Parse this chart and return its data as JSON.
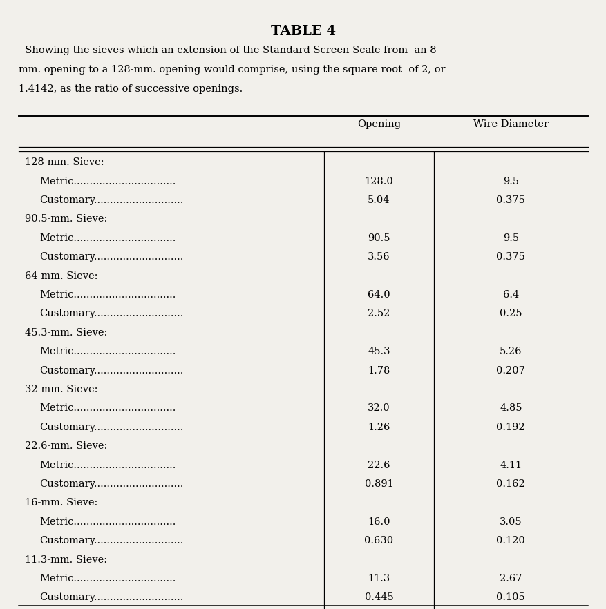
{
  "title": "TABLE 4",
  "subtitle_line1": "  Showing the sieves which an extension of the Standard Screen Scale from  an 8-",
  "subtitle_line2": "mm. opening to a 128-mm. opening would comprise, using the square root  of 2, or",
  "subtitle_line3": "1.4142, as the ratio of successive openings.",
  "col_header1": "Opening",
  "col_header2": "Wire Diameter",
  "rows": [
    {
      "label": "128-mm. Sieve:",
      "indent": false,
      "opening": "",
      "wire": ""
    },
    {
      "label": "Metric................................",
      "indent": true,
      "opening": "128.0",
      "wire": "9.5"
    },
    {
      "label": "Customary............................",
      "indent": true,
      "opening": "5.04",
      "wire": "0.375"
    },
    {
      "label": "90.5-mm. Sieve:",
      "indent": false,
      "opening": "",
      "wire": ""
    },
    {
      "label": "Metric................................",
      "indent": true,
      "opening": "90.5",
      "wire": "9.5"
    },
    {
      "label": "Customary............................",
      "indent": true,
      "opening": "3.56",
      "wire": "0.375"
    },
    {
      "label": "64-mm. Sieve:",
      "indent": false,
      "opening": "",
      "wire": ""
    },
    {
      "label": "Metric................................",
      "indent": true,
      "opening": "64.0",
      "wire": "6.4"
    },
    {
      "label": "Customary............................",
      "indent": true,
      "opening": "2.52",
      "wire": "0.25"
    },
    {
      "label": "45.3-mm. Sieve:",
      "indent": false,
      "opening": "",
      "wire": ""
    },
    {
      "label": "Metric................................",
      "indent": true,
      "opening": "45.3",
      "wire": "5.26"
    },
    {
      "label": "Customary............................",
      "indent": true,
      "opening": "1.78",
      "wire": "0.207"
    },
    {
      "label": "32-mm. Sieve:",
      "indent": false,
      "opening": "",
      "wire": ""
    },
    {
      "label": "Metric................................",
      "indent": true,
      "opening": "32.0",
      "wire": "4.85"
    },
    {
      "label": "Customary............................",
      "indent": true,
      "opening": "1.26",
      "wire": "0.192"
    },
    {
      "label": "22.6-mm. Sieve:",
      "indent": false,
      "opening": "",
      "wire": ""
    },
    {
      "label": "Metric................................",
      "indent": true,
      "opening": "22.6",
      "wire": "4.11"
    },
    {
      "label": "Customary............................",
      "indent": true,
      "opening": "0.891",
      "wire": "0.162"
    },
    {
      "label": "16-mm. Sieve:",
      "indent": false,
      "opening": "",
      "wire": ""
    },
    {
      "label": "Metric................................",
      "indent": true,
      "opening": "16.0",
      "wire": "3.05"
    },
    {
      "label": "Customary............................",
      "indent": true,
      "opening": "0.630",
      "wire": "0.120"
    },
    {
      "label": "11.3-mm. Sieve:",
      "indent": false,
      "opening": "",
      "wire": ""
    },
    {
      "label": "Metric................................",
      "indent": true,
      "opening": "11.3",
      "wire": "2.67"
    },
    {
      "label": "Customary............................",
      "indent": true,
      "opening": "0.445",
      "wire": "0.105"
    }
  ],
  "bg_color": "#f2f0eb",
  "font_size": 10.5,
  "title_font_size": 14
}
